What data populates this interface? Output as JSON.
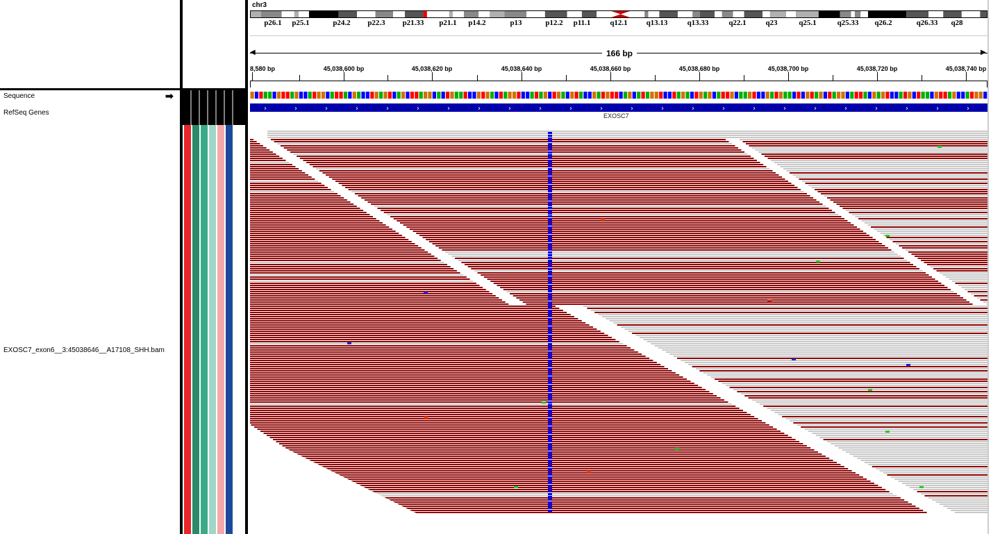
{
  "chromosome": "chr3",
  "span_label": "166 bp",
  "ideogram_bands": [
    "p26.1",
    "p25.1",
    "p24.2",
    "p22.3",
    "p21.33",
    "p21.1",
    "p14.2",
    "p13",
    "p12.2",
    "p11.1",
    "q12.1",
    "q13.13",
    "q13.33",
    "q22.1",
    "q23",
    "q25.1",
    "q25.33",
    "q26.2",
    "q26.33",
    "q28"
  ],
  "ruler_ticks": [
    "8,580 bp",
    "45,038,600 bp",
    "45,038,620 bp",
    "45,038,640 bp",
    "45,038,660 bp",
    "45,038,680 bp",
    "45,038,700 bp",
    "45,038,720 bp",
    "45,038,740 bp"
  ],
  "tracks": {
    "sequence": "Sequence",
    "refseq": "RefSeq Genes",
    "bam": "EXOSC7_exon6__3:45038646__A17108_SHH.bam"
  },
  "gene_name": "EXOSC7",
  "attribute_colors": [
    "#e8262b",
    "#2a8a6a",
    "#3aaa88",
    "#9fd6c8",
    "#f4a9a8",
    "#1c4a9a",
    "#ffffff"
  ],
  "colors": {
    "read": "#8b0000",
    "read_low_mapq": "#c8c8c8",
    "variant_column": "#0000ee",
    "gene": "#0000aa",
    "base_A": "#00b000",
    "base_C": "#0000ff",
    "base_G": "#d17105",
    "base_T": "#ff0000"
  }
}
